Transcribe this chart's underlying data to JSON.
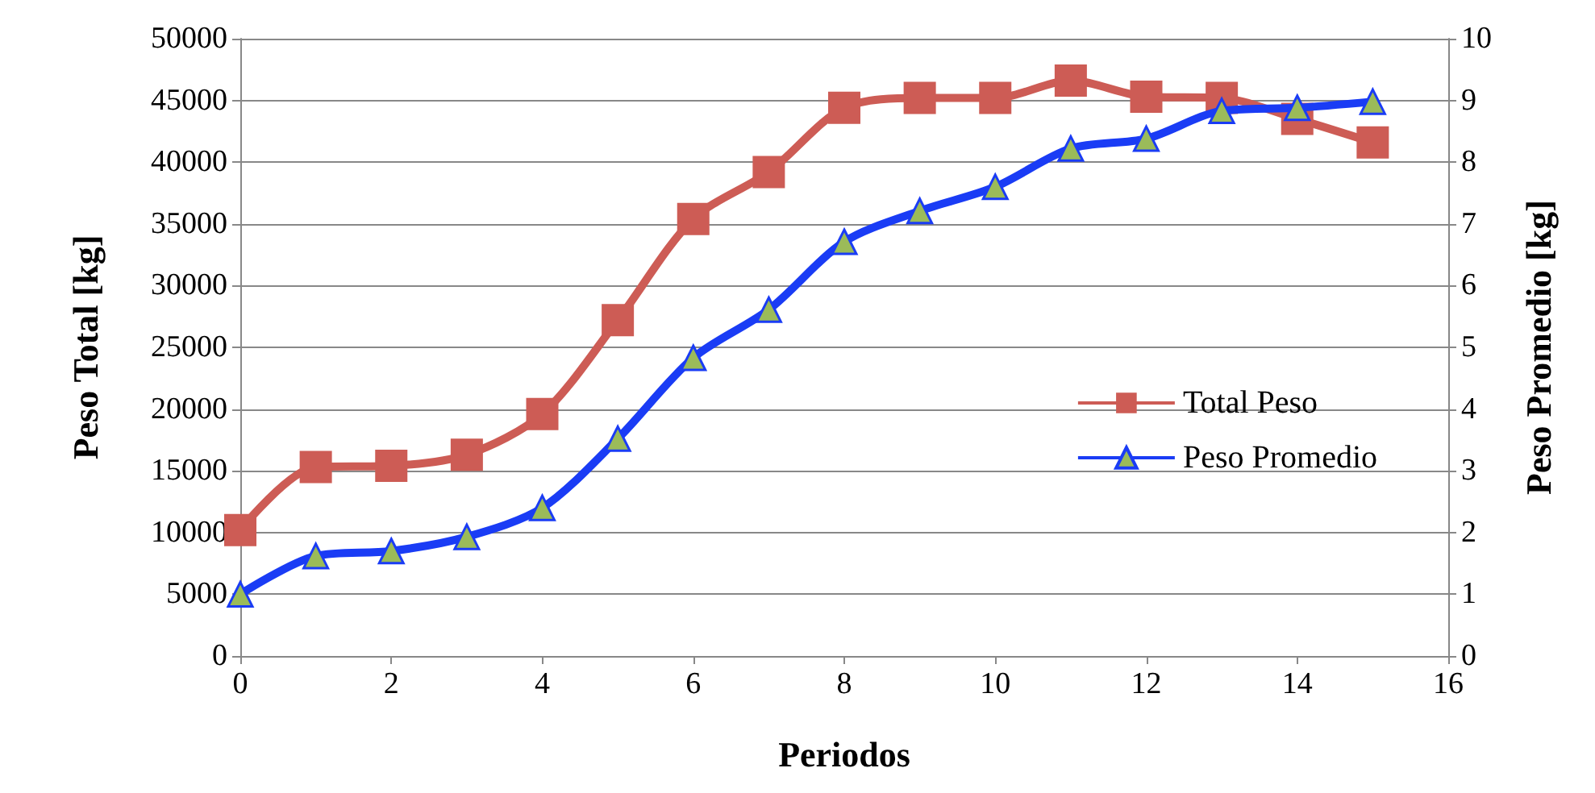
{
  "chart_data": {
    "type": "line",
    "xlabel": "Periodos",
    "ylabel": "Peso Total [kg]",
    "y2label": "Peso Promedio [kg]",
    "x": [
      0,
      1,
      2,
      3,
      4,
      5,
      6,
      7,
      8,
      9,
      10,
      11,
      12,
      13,
      14,
      15
    ],
    "series": [
      {
        "name": "Total Peso",
        "color": "#cd5c55",
        "marker": "square",
        "values": [
          10200,
          15300,
          15400,
          16300,
          19600,
          27200,
          35400,
          39200,
          44400,
          45200,
          45200,
          46600,
          45300,
          45200,
          43500,
          41600
        ]
      },
      {
        "name": "Peso Promedio",
        "color": "#1a3cf5",
        "marker": "triangle",
        "axis": "y2",
        "values": [
          1.0,
          1.62,
          1.7,
          1.93,
          2.4,
          3.52,
          4.83,
          5.61,
          6.71,
          7.21,
          7.6,
          8.22,
          8.38,
          8.83,
          8.88,
          8.98
        ]
      }
    ],
    "xlim": [
      0,
      16
    ],
    "xticks": [
      0,
      2,
      4,
      6,
      8,
      10,
      12,
      14,
      16
    ],
    "ylim": [
      0,
      50000
    ],
    "yticks": [
      0,
      5000,
      10000,
      15000,
      20000,
      25000,
      30000,
      35000,
      40000,
      45000,
      50000
    ],
    "y2lim": [
      0,
      10
    ],
    "y2ticks": [
      0,
      1,
      2,
      3,
      4,
      5,
      6,
      7,
      8,
      9,
      10
    ],
    "grid": "y",
    "legend": "right"
  }
}
